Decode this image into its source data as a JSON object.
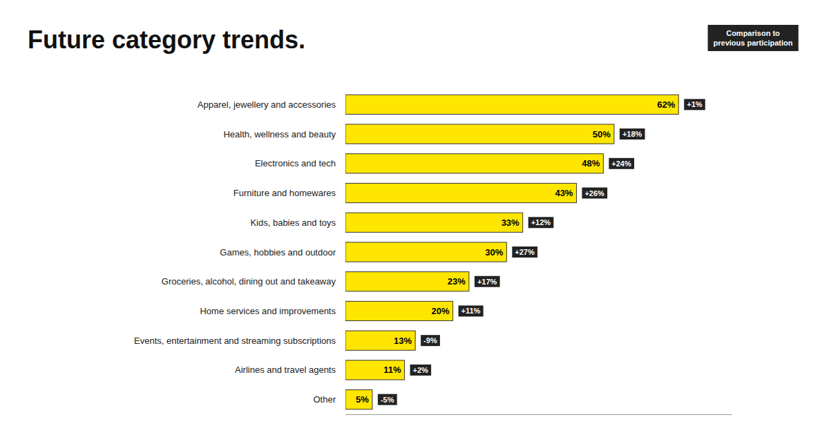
{
  "chart_data": {
    "type": "bar",
    "orientation": "horizontal",
    "title": "Future category trends.",
    "categories": [
      "Apparel, jewellery and accessories",
      "Health, wellness and beauty",
      "Electronics and tech",
      "Furniture and homewares",
      "Kids, babies and toys",
      "Games, hobbies and outdoor",
      "Groceries, alcohol, dining out and takeaway",
      "Home services and improvements",
      "Events, entertainment and streaming subscriptions",
      "Airlines and travel agents",
      "Other"
    ],
    "values": [
      62,
      50,
      48,
      43,
      33,
      30,
      23,
      20,
      13,
      11,
      5
    ],
    "value_labels": [
      "62%",
      "50%",
      "48%",
      "43%",
      "33%",
      "30%",
      "23%",
      "20%",
      "13%",
      "11%",
      "5%"
    ],
    "data_labels": true,
    "color": "#FFE600",
    "xlim": [
      0,
      72
    ],
    "tick_labels": false,
    "grid": false,
    "annotations": {
      "comparisons": [
        "+1%",
        "+18%",
        "+24%",
        "+26%",
        "+12%",
        "+27%",
        "+17%",
        "+11%",
        "-9%",
        "+2%",
        "-5%"
      ],
      "key": "Comparison to\nprevious participation"
    }
  }
}
